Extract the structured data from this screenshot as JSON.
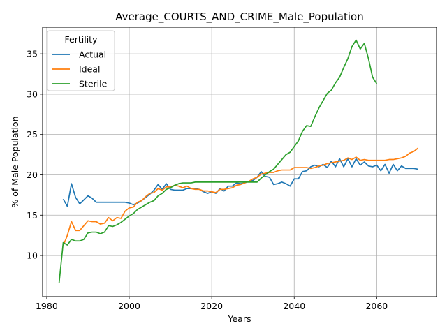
{
  "chart_data": {
    "type": "line",
    "title": "Average_COURTS_AND_CRIME_Male_Population",
    "xlabel": "Years",
    "ylabel": "% of Male Population",
    "xlim": [
      1979,
      2074.5
    ],
    "ylim": [
      4.9,
      38.3
    ],
    "xticks": [
      1980,
      2000,
      2020,
      2040,
      2060
    ],
    "yticks": [
      10,
      15,
      20,
      25,
      30,
      35
    ],
    "grid": true,
    "legend": {
      "title": "Fertility",
      "position": "top-left"
    },
    "series": [
      {
        "name": "Actual",
        "color": "#1f77b4",
        "x": [
          1984,
          1985,
          1986,
          1987,
          1988,
          1989,
          1990,
          1991,
          1992,
          1993,
          1994,
          1995,
          1996,
          1997,
          1998,
          1999,
          2000,
          2001,
          2002,
          2003,
          2004,
          2005,
          2006,
          2007,
          2008,
          2009,
          2010,
          2011,
          2012,
          2013,
          2014,
          2015,
          2016,
          2017,
          2018,
          2019,
          2020,
          2021,
          2022,
          2023,
          2024,
          2025,
          2026,
          2027,
          2028,
          2029,
          2030,
          2031,
          2032,
          2033,
          2034,
          2035,
          2036,
          2037,
          2038,
          2039,
          2040,
          2041,
          2042,
          2043,
          2044,
          2045,
          2046,
          2047,
          2048,
          2049,
          2050,
          2051,
          2052,
          2053,
          2054,
          2055,
          2056,
          2057,
          2058,
          2059,
          2060,
          2061,
          2062,
          2063,
          2064,
          2065,
          2066,
          2067,
          2068,
          2069,
          2070
        ],
        "values": [
          17.0,
          16.1,
          18.9,
          17.2,
          16.4,
          16.9,
          17.4,
          17.1,
          16.6,
          16.6,
          16.6,
          16.6,
          16.6,
          16.6,
          16.6,
          16.6,
          16.5,
          16.3,
          16.5,
          16.8,
          17.2,
          17.6,
          18.1,
          18.8,
          18.2,
          18.9,
          18.2,
          18.1,
          18.1,
          18.1,
          18.3,
          18.3,
          18.3,
          18.2,
          17.9,
          17.7,
          17.9,
          17.7,
          18.3,
          18.0,
          18.6,
          18.6,
          19.0,
          18.9,
          19.0,
          19.2,
          19.3,
          19.7,
          20.4,
          19.8,
          19.7,
          18.8,
          18.9,
          19.1,
          18.9,
          18.6,
          19.5,
          19.5,
          20.4,
          20.5,
          21.0,
          21.2,
          21.0,
          21.3,
          20.9,
          21.7,
          21.0,
          22.0,
          21.0,
          22.0,
          21.0,
          22.0,
          21.2,
          21.6,
          21.1,
          21.0,
          21.2,
          20.5,
          21.3,
          20.2,
          21.3,
          20.5,
          21.1,
          20.8,
          20.8,
          20.8,
          20.7
        ]
      },
      {
        "name": "Ideal",
        "color": "#ff7f0e",
        "x": [
          1984,
          1985,
          1986,
          1987,
          1988,
          1989,
          1990,
          1991,
          1992,
          1993,
          1994,
          1995,
          1996,
          1997,
          1998,
          1999,
          2000,
          2001,
          2002,
          2003,
          2004,
          2005,
          2006,
          2007,
          2008,
          2009,
          2010,
          2011,
          2012,
          2013,
          2014,
          2015,
          2016,
          2017,
          2018,
          2019,
          2020,
          2021,
          2022,
          2023,
          2024,
          2025,
          2026,
          2027,
          2028,
          2029,
          2030,
          2031,
          2032,
          2033,
          2034,
          2035,
          2036,
          2037,
          2038,
          2039,
          2040,
          2041,
          2042,
          2043,
          2044,
          2045,
          2046,
          2047,
          2048,
          2049,
          2050,
          2051,
          2052,
          2053,
          2054,
          2055,
          2056,
          2057,
          2058,
          2059,
          2060,
          2061,
          2062,
          2063,
          2064,
          2065,
          2066,
          2067,
          2068,
          2069,
          2070
        ],
        "values": [
          11.2,
          12.5,
          14.2,
          13.1,
          13.1,
          13.7,
          14.3,
          14.2,
          14.2,
          13.9,
          14.0,
          14.7,
          14.3,
          14.7,
          14.6,
          15.5,
          15.9,
          16.0,
          16.6,
          16.8,
          17.3,
          17.7,
          17.8,
          18.3,
          18.1,
          18.5,
          18.5,
          18.7,
          18.6,
          18.4,
          18.6,
          18.3,
          18.2,
          18.2,
          18.0,
          18.0,
          17.9,
          17.8,
          18.2,
          18.2,
          18.3,
          18.4,
          18.7,
          18.8,
          19.0,
          19.2,
          19.5,
          19.7,
          20.1,
          20.2,
          20.3,
          20.3,
          20.5,
          20.6,
          20.6,
          20.6,
          20.9,
          20.9,
          20.9,
          20.9,
          20.8,
          20.9,
          21.1,
          21.2,
          21.4,
          21.5,
          21.6,
          21.7,
          21.8,
          22.1,
          21.9,
          22.2,
          21.8,
          21.9,
          21.8,
          21.8,
          21.8,
          21.8,
          21.8,
          21.9,
          21.9,
          22.0,
          22.1,
          22.3,
          22.7,
          22.9,
          23.3
        ]
      },
      {
        "name": "Sterile",
        "color": "#2ca02c",
        "x": [
          1983,
          1984,
          1985,
          1986,
          1987,
          1988,
          1989,
          1990,
          1991,
          1992,
          1993,
          1994,
          1995,
          1996,
          1997,
          1998,
          1999,
          2000,
          2001,
          2002,
          2003,
          2004,
          2005,
          2006,
          2007,
          2008,
          2009,
          2010,
          2011,
          2012,
          2013,
          2014,
          2015,
          2016,
          2017,
          2018,
          2019,
          2020,
          2021,
          2022,
          2023,
          2024,
          2025,
          2026,
          2027,
          2028,
          2029,
          2030,
          2031,
          2032,
          2033,
          2034,
          2035,
          2036,
          2037,
          2038,
          2039,
          2040,
          2041,
          2042,
          2043,
          2044,
          2045,
          2046,
          2047,
          2048,
          2049,
          2050,
          2051,
          2052,
          2053,
          2054,
          2055,
          2056,
          2057,
          2058,
          2059,
          2060
        ],
        "values": [
          6.6,
          11.6,
          11.3,
          12.0,
          11.8,
          11.8,
          12.0,
          12.8,
          12.9,
          12.9,
          12.7,
          12.9,
          13.7,
          13.6,
          13.8,
          14.1,
          14.5,
          14.9,
          15.2,
          15.7,
          16.0,
          16.3,
          16.6,
          16.8,
          17.4,
          17.7,
          18.2,
          18.4,
          18.7,
          18.9,
          19.0,
          19.0,
          19.0,
          19.1,
          19.1,
          19.1,
          19.1,
          19.1,
          19.1,
          19.1,
          19.1,
          19.1,
          19.1,
          19.1,
          19.1,
          19.1,
          19.1,
          19.1,
          19.1,
          19.6,
          20.0,
          20.4,
          20.7,
          21.3,
          21.9,
          22.5,
          22.8,
          23.5,
          24.2,
          25.4,
          26.1,
          26.0,
          27.2,
          28.3,
          29.2,
          30.1,
          30.5,
          31.4,
          32.1,
          33.3,
          34.4,
          35.9,
          36.7,
          35.6,
          36.3,
          34.4,
          32.1,
          31.3
        ]
      }
    ]
  }
}
